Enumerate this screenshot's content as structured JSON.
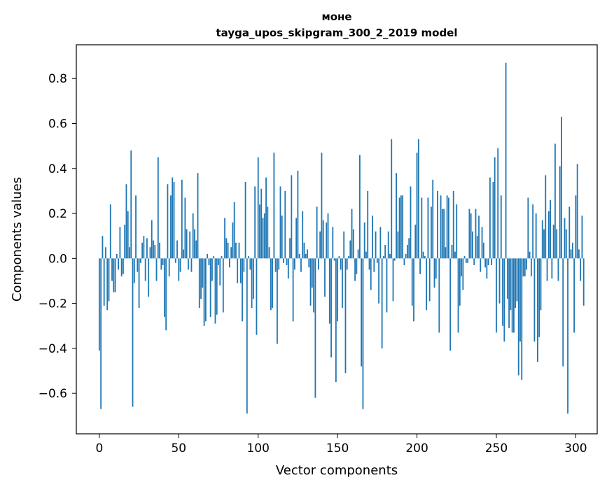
{
  "chart_data": {
    "type": "bar",
    "title": "моне",
    "subtitle": "tayga_upos_skipgram_300_2_2019 model",
    "xlabel": "Vector components",
    "ylabel": "Components values",
    "xlim": [
      -14.5,
      313.5
    ],
    "ylim": [
      -0.78,
      0.95
    ],
    "xticks": [
      0,
      50,
      100,
      150,
      200,
      250,
      300
    ],
    "yticks": [
      -0.6,
      -0.4,
      -0.2,
      0.0,
      0.2,
      0.4,
      0.6,
      0.8
    ],
    "ytick_labels": [
      "−0.6",
      "−0.4",
      "−0.2",
      "0.0",
      "0.2",
      "0.4",
      "0.6",
      "0.8"
    ],
    "color": "#1f77b4",
    "x_start": 0,
    "values": [
      -0.41,
      -0.67,
      0.1,
      -0.21,
      0.05,
      -0.23,
      -0.19,
      0.24,
      -0.1,
      -0.15,
      -0.15,
      0.02,
      -0.05,
      0.14,
      -0.08,
      -0.07,
      0.15,
      0.33,
      0.21,
      0.05,
      0.48,
      -0.66,
      -0.11,
      0.28,
      -0.06,
      -0.22,
      -0.02,
      0.07,
      0.1,
      -0.1,
      0.09,
      -0.17,
      0.05,
      0.17,
      0.08,
      0.06,
      -0.1,
      0.45,
      0.07,
      -0.05,
      -0.03,
      -0.26,
      -0.32,
      0.33,
      -0.08,
      0.28,
      0.36,
      0.34,
      -0.02,
      0.08,
      -0.1,
      -0.06,
      0.35,
      0.04,
      0.27,
      0.13,
      -0.05,
      0.12,
      -0.06,
      0.2,
      0.13,
      0.08,
      0.38,
      -0.22,
      -0.18,
      -0.13,
      -0.3,
      -0.28,
      0.02,
      -0.03,
      -0.26,
      -0.1,
      0.01,
      -0.29,
      -0.25,
      -0.03,
      -0.12,
      0.01,
      -0.24,
      0.18,
      0.09,
      0.07,
      -0.04,
      0.05,
      0.16,
      0.25,
      0.07,
      -0.11,
      0.07,
      -0.11,
      -0.28,
      -0.06,
      0.34,
      -0.69,
      0.01,
      -0.05,
      -0.22,
      -0.18,
      0.32,
      -0.34,
      0.45,
      0.24,
      0.31,
      0.18,
      0.2,
      0.36,
      0.23,
      0.05,
      -0.23,
      -0.22,
      0.47,
      -0.06,
      -0.38,
      -0.05,
      0.32,
      0.19,
      -0.02,
      0.3,
      -0.03,
      -0.09,
      0.09,
      0.37,
      -0.28,
      -0.05,
      0.18,
      0.39,
      0.02,
      -0.06,
      0.21,
      0.07,
      0.02,
      0.04,
      -0.04,
      -0.21,
      -0.13,
      -0.24,
      -0.62,
      0.23,
      -0.05,
      0.12,
      0.47,
      0.17,
      -0.17,
      0.16,
      0.2,
      -0.29,
      -0.44,
      0.14,
      -0.01,
      -0.55,
      -0.28,
      0.01,
      -0.05,
      -0.22,
      0.12,
      -0.51,
      -0.05,
      0.01,
      0.08,
      0.22,
      0.13,
      -0.1,
      -0.07,
      0.04,
      0.46,
      -0.48,
      -0.67,
      0.16,
      0.03,
      0.3,
      -0.05,
      -0.14,
      0.19,
      -0.06,
      0.12,
      -0.02,
      -0.2,
      0.14,
      -0.4,
      0.01,
      0.06,
      -0.24,
      0.12,
      0.02,
      0.53,
      -0.19,
      -0.01,
      0.38,
      0.12,
      0.27,
      0.28,
      0.28,
      -0.03,
      0.02,
      0.06,
      0.09,
      0.32,
      -0.21,
      -0.28,
      0.15,
      0.47,
      0.53,
      -0.07,
      0.27,
      0.03,
      0.01,
      -0.23,
      0.27,
      -0.19,
      0.23,
      0.35,
      -0.13,
      -0.09,
      0.3,
      -0.33,
      0.28,
      0.22,
      0.22,
      0.05,
      0.28,
      0.27,
      -0.41,
      0.06,
      0.3,
      0.03,
      0.24,
      -0.33,
      -0.21,
      -0.08,
      -0.14,
      0.01,
      -0.02,
      -0.02,
      0.22,
      0.2,
      0.12,
      -0.03,
      0.22,
      0.1,
      0.19,
      -0.06,
      0.14,
      0.07,
      -0.04,
      -0.09,
      -0.03,
      0.36,
      -0.03,
      0.34,
      0.45,
      -0.33,
      0.49,
      -0.2,
      0.28,
      -0.3,
      -0.37,
      0.87,
      -0.18,
      -0.31,
      -0.23,
      -0.33,
      -0.33,
      -0.22,
      -0.19,
      -0.52,
      -0.37,
      -0.54,
      -0.08,
      -0.08,
      -0.05,
      0.27,
      0.03,
      -0.08,
      0.24,
      -0.37,
      0.2,
      -0.46,
      -0.35,
      -0.23,
      0.17,
      0.13,
      0.37,
      -0.1,
      0.21,
      0.26,
      -0.09,
      0.15,
      0.51,
      0.13,
      -0.1,
      0.41,
      0.63,
      -0.48,
      0.18,
      0.13,
      -0.69,
      0.23,
      0.04,
      0.07,
      -0.33,
      0.28,
      0.42,
      0.04,
      -0.1,
      0.19,
      -0.21
    ]
  }
}
